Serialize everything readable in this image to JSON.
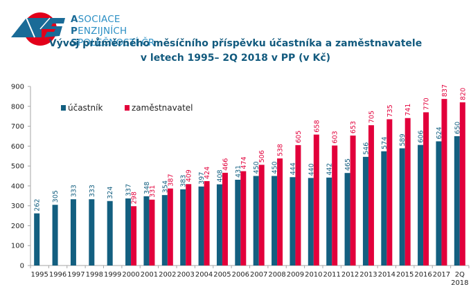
{
  "org": {
    "line1_initial": "A",
    "line1_rest": "SOCIACE",
    "line2_initial": "P",
    "line2_rest": "ENZIJNÍCH",
    "line3_initial": "S",
    "line3_rest": "POLEČNOSTÍ ČR"
  },
  "colors": {
    "series1": "#135f80",
    "series2": "#e2003b",
    "title": "#125a7e",
    "brand": "#2b8fc4",
    "logo_red": "#e2001a"
  },
  "chart_data": {
    "type": "bar",
    "title": "Vývoj průměrného měsíčního příspěvku účastníka a zaměstnavatele",
    "subtitle": "v letech 1995– 2Q 2018 v PP (v Kč)",
    "xlabel": "",
    "ylabel": "",
    "ylim": [
      0,
      900
    ],
    "yticks": [
      0,
      100,
      200,
      300,
      400,
      500,
      600,
      700,
      800,
      900
    ],
    "grid": false,
    "legend_position": "top-left",
    "categories": [
      "1995",
      "1996",
      "1997",
      "1998",
      "1999",
      "2000",
      "2001",
      "2002",
      "2003",
      "2004",
      "2005",
      "2006",
      "2007",
      "2008",
      "2009",
      "2010",
      "2011",
      "2012",
      "2013",
      "2014",
      "2015",
      "2016",
      "2017",
      "2Q 2018"
    ],
    "series": [
      {
        "name": "účastník",
        "color": "#135f80",
        "values": [
          262,
          305,
          333,
          333,
          324,
          337,
          348,
          354,
          383,
          397,
          408,
          431,
          450,
          450,
          444,
          440,
          442,
          465,
          546,
          574,
          589,
          606,
          624,
          650
        ]
      },
      {
        "name": "zaměstnavatel",
        "color": "#e2003b",
        "values": [
          null,
          null,
          null,
          null,
          null,
          298,
          331,
          387,
          409,
          424,
          466,
          474,
          506,
          538,
          605,
          658,
          603,
          653,
          705,
          735,
          741,
          770,
          837,
          820
        ]
      }
    ]
  }
}
